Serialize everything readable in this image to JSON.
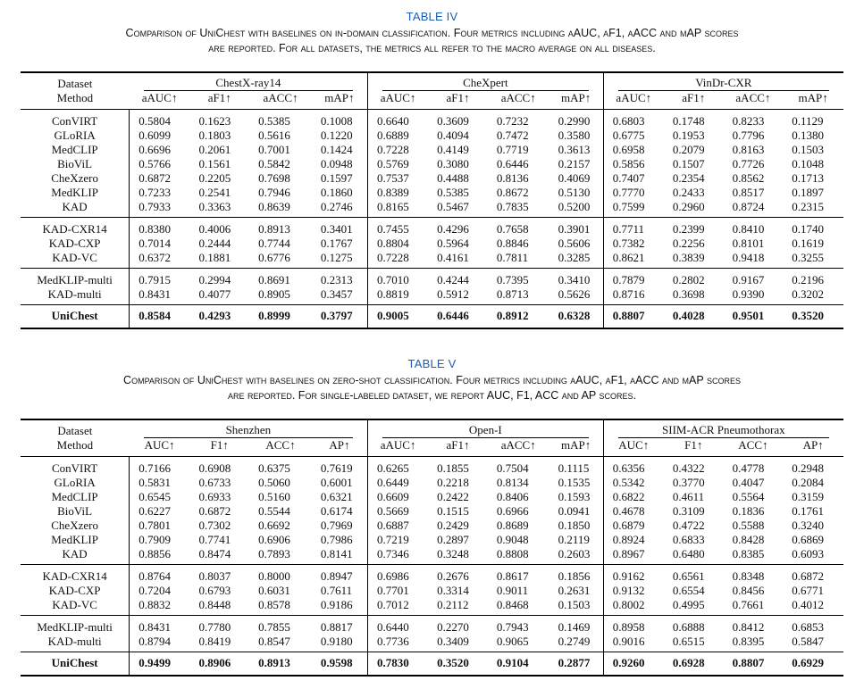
{
  "table4": {
    "label": "TABLE IV",
    "caption_line1": "Comparison of UniChest with baselines on in-domain classification. Four metrics including aAUC, aF1, aACC and mAP scores",
    "caption_line2": "are reported. For all datasets, the metrics all refer to the macro average on all diseases.",
    "head_dataset": "Dataset",
    "head_method": "Method",
    "groups": [
      "ChestX-ray14",
      "CheXpert",
      "VinDr-CXR"
    ],
    "metrics": [
      "aAUC↑",
      "aF1↑",
      "aACC↑",
      "mAP↑",
      "aAUC↑",
      "aF1↑",
      "aACC↑",
      "mAP↑",
      "aAUC↑",
      "aF1↑",
      "aACC↑",
      "mAP↑"
    ],
    "rows": [
      [
        "ConVIRT",
        "0.5804",
        "0.1623",
        "0.5385",
        "0.1008",
        "0.6640",
        "0.3609",
        "0.7232",
        "0.2990",
        "0.6803",
        "0.1748",
        "0.8233",
        "0.1129"
      ],
      [
        "GLoRIA",
        "0.6099",
        "0.1803",
        "0.5616",
        "0.1220",
        "0.6889",
        "0.4094",
        "0.7472",
        "0.3580",
        "0.6775",
        "0.1953",
        "0.7796",
        "0.1380"
      ],
      [
        "MedCLIP",
        "0.6696",
        "0.2061",
        "0.7001",
        "0.1424",
        "0.7228",
        "0.4149",
        "0.7719",
        "0.3613",
        "0.6958",
        "0.2079",
        "0.8163",
        "0.1503"
      ],
      [
        "BioViL",
        "0.5766",
        "0.1561",
        "0.5842",
        "0.0948",
        "0.5769",
        "0.3080",
        "0.6446",
        "0.2157",
        "0.5856",
        "0.1507",
        "0.7726",
        "0.1048"
      ],
      [
        "CheXzero",
        "0.6872",
        "0.2205",
        "0.7698",
        "0.1597",
        "0.7537",
        "0.4488",
        "0.8136",
        "0.4069",
        "0.7407",
        "0.2354",
        "0.8562",
        "0.1713"
      ],
      [
        "MedKLIP",
        "0.7233",
        "0.2541",
        "0.7946",
        "0.1860",
        "0.8389",
        "0.5385",
        "0.8672",
        "0.5130",
        "0.7770",
        "0.2433",
        "0.8517",
        "0.1897"
      ],
      [
        "KAD",
        "0.7933",
        "0.3363",
        "0.8639",
        "0.2746",
        "0.8165",
        "0.5467",
        "0.7835",
        "0.5200",
        "0.7599",
        "0.2960",
        "0.8724",
        "0.2315"
      ],
      [
        "KAD-CXR14",
        "0.8380",
        "0.4006",
        "0.8913",
        "0.3401",
        "0.7455",
        "0.4296",
        "0.7658",
        "0.3901",
        "0.7711",
        "0.2399",
        "0.8410",
        "0.1740"
      ],
      [
        "KAD-CXP",
        "0.7014",
        "0.2444",
        "0.7744",
        "0.1767",
        "0.8804",
        "0.5964",
        "0.8846",
        "0.5606",
        "0.7382",
        "0.2256",
        "0.8101",
        "0.1619"
      ],
      [
        "KAD-VC",
        "0.6372",
        "0.1881",
        "0.6776",
        "0.1275",
        "0.7228",
        "0.4161",
        "0.7811",
        "0.3285",
        "0.8621",
        "0.3839",
        "0.9418",
        "0.3255"
      ],
      [
        "MedKLIP-multi",
        "0.7915",
        "0.2994",
        "0.8691",
        "0.2313",
        "0.7010",
        "0.4244",
        "0.7395",
        "0.3410",
        "0.7879",
        "0.2802",
        "0.9167",
        "0.2196"
      ],
      [
        "KAD-multi",
        "0.8431",
        "0.4077",
        "0.8905",
        "0.3457",
        "0.8819",
        "0.5912",
        "0.8713",
        "0.5626",
        "0.8716",
        "0.3698",
        "0.9390",
        "0.3202"
      ],
      [
        "UniChest",
        "0.8584",
        "0.4293",
        "0.8999",
        "0.3797",
        "0.9005",
        "0.6446",
        "0.8912",
        "0.6328",
        "0.8807",
        "0.4028",
        "0.9501",
        "0.3520"
      ]
    ]
  },
  "table5": {
    "label": "TABLE V",
    "caption_line1": "Comparison of UniChest with baselines on zero-shot classification. Four metrics including aAUC, aF1, aACC and mAP scores",
    "caption_line2": "are reported. For single-labeled dataset, we report AUC, F1, ACC and AP scores.",
    "head_dataset": "Dataset",
    "head_method": "Method",
    "groups": [
      "Shenzhen",
      "Open-I",
      "SIIM-ACR Pneumothorax"
    ],
    "metrics": [
      "AUC↑",
      "F1↑",
      "ACC↑",
      "AP↑",
      "aAUC↑",
      "aF1↑",
      "aACC↑",
      "mAP↑",
      "AUC↑",
      "F1↑",
      "ACC↑",
      "AP↑"
    ],
    "rows": [
      [
        "ConVIRT",
        "0.7166",
        "0.6908",
        "0.6375",
        "0.7619",
        "0.6265",
        "0.1855",
        "0.7504",
        "0.1115",
        "0.6356",
        "0.4322",
        "0.4778",
        "0.2948"
      ],
      [
        "GLoRIA",
        "0.5831",
        "0.6733",
        "0.5060",
        "0.6001",
        "0.6449",
        "0.2218",
        "0.8134",
        "0.1535",
        "0.5342",
        "0.3770",
        "0.4047",
        "0.2084"
      ],
      [
        "MedCLIP",
        "0.6545",
        "0.6933",
        "0.5160",
        "0.6321",
        "0.6609",
        "0.2422",
        "0.8406",
        "0.1593",
        "0.6822",
        "0.4611",
        "0.5564",
        "0.3159"
      ],
      [
        "BioViL",
        "0.6227",
        "0.6872",
        "0.5544",
        "0.6174",
        "0.5669",
        "0.1515",
        "0.6966",
        "0.0941",
        "0.4678",
        "0.3109",
        "0.1836",
        "0.1761"
      ],
      [
        "CheXzero",
        "0.7801",
        "0.7302",
        "0.6692",
        "0.7969",
        "0.6887",
        "0.2429",
        "0.8689",
        "0.1850",
        "0.6879",
        "0.4722",
        "0.5588",
        "0.3240"
      ],
      [
        "MedKLIP",
        "0.7909",
        "0.7741",
        "0.6906",
        "0.7986",
        "0.7219",
        "0.2897",
        "0.9048",
        "0.2119",
        "0.8924",
        "0.6833",
        "0.8428",
        "0.6869"
      ],
      [
        "KAD",
        "0.8856",
        "0.8474",
        "0.7893",
        "0.8141",
        "0.7346",
        "0.3248",
        "0.8808",
        "0.2603",
        "0.8967",
        "0.6480",
        "0.8385",
        "0.6093"
      ],
      [
        "KAD-CXR14",
        "0.8764",
        "0.8037",
        "0.8000",
        "0.8947",
        "0.6986",
        "0.2676",
        "0.8617",
        "0.1856",
        "0.9162",
        "0.6561",
        "0.8348",
        "0.6872"
      ],
      [
        "KAD-CXP",
        "0.7204",
        "0.6793",
        "0.6031",
        "0.7611",
        "0.7701",
        "0.3314",
        "0.9011",
        "0.2631",
        "0.9132",
        "0.6554",
        "0.8456",
        "0.6771"
      ],
      [
        "KAD-VC",
        "0.8832",
        "0.8448",
        "0.8578",
        "0.9186",
        "0.7012",
        "0.2112",
        "0.8468",
        "0.1503",
        "0.8002",
        "0.4995",
        "0.7661",
        "0.4012"
      ],
      [
        "MedKLIP-multi",
        "0.8431",
        "0.7780",
        "0.7855",
        "0.8817",
        "0.6440",
        "0.2270",
        "0.7943",
        "0.1469",
        "0.8958",
        "0.6888",
        "0.8412",
        "0.6853"
      ],
      [
        "KAD-multi",
        "0.8794",
        "0.8419",
        "0.8547",
        "0.9180",
        "0.7736",
        "0.3409",
        "0.9065",
        "0.2749",
        "0.9016",
        "0.6515",
        "0.8395",
        "0.5847"
      ],
      [
        "UniChest",
        "0.9499",
        "0.8906",
        "0.8913",
        "0.9598",
        "0.7830",
        "0.3520",
        "0.9104",
        "0.2877",
        "0.9260",
        "0.6928",
        "0.8807",
        "0.6929"
      ]
    ]
  }
}
